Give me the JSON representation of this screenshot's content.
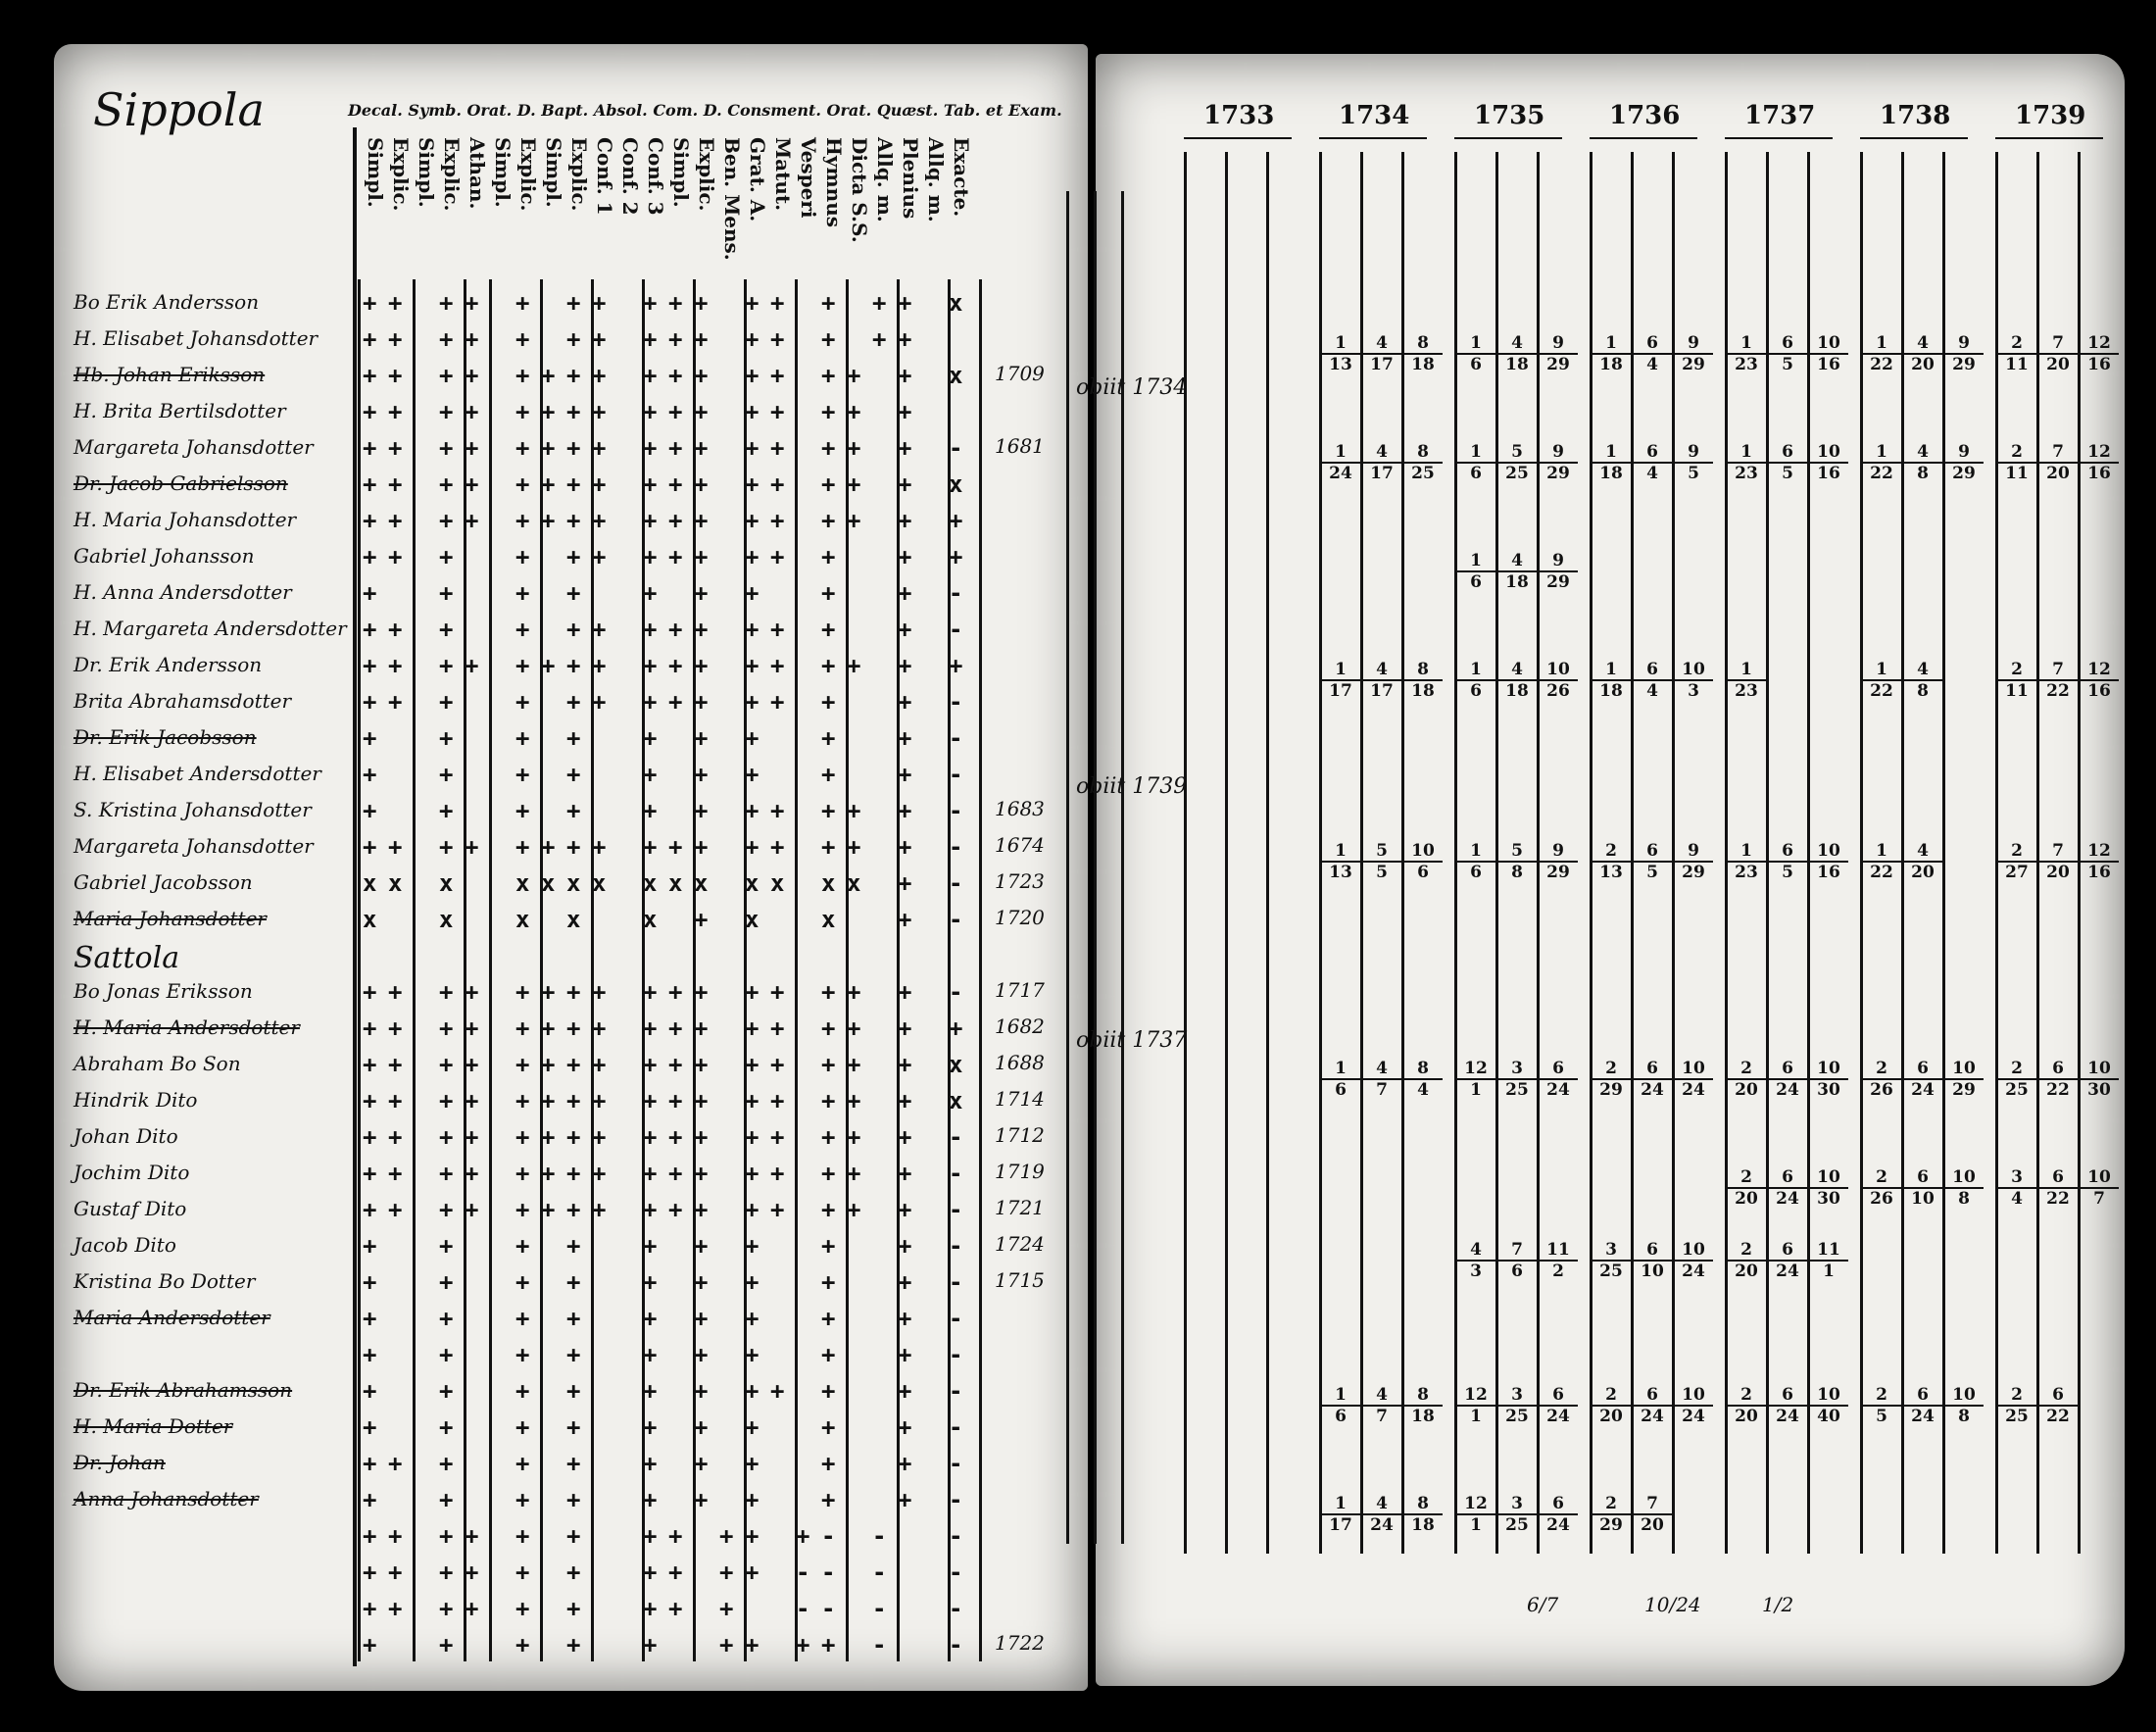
{
  "left_page": {
    "village_title": "Sippola",
    "header_line": "Decal. Symb. Orat. D. Bapt. Absol. Com. D. Consment. Orat. Quæst. Tab. et Exam.",
    "column_headers": [
      "Simpl.",
      "Explic.",
      "Simpl.",
      "Explic.",
      "Athan.",
      "Simpl.",
      "Explic.",
      "Simpl.",
      "Explic.",
      "Conf. 1",
      "Conf. 2",
      "Conf. 3",
      "Simpl.",
      "Explic.",
      "Ben. Mens.",
      "Grat. A.",
      "Matut.",
      "Vesperi",
      "Hymnus",
      "Dicta S.S.",
      "Allq. m.",
      "Plenius",
      "Allq. m.",
      "Exacte."
    ],
    "rows": [
      {
        "name": "Bo Erik Andersson",
        "marks": "++ ++ + ++ +++ ++ + ++ x",
        "year": "",
        "obit": ""
      },
      {
        "name": "H. Elisabet Johansdotter",
        "marks": "++ ++ + ++ +++ ++ + ++  ",
        "year": "",
        "obit": ""
      },
      {
        "name": "Hb. Johan Eriksson",
        "marks": "++ ++ ++++ +++ ++ ++ + x",
        "year": "1709",
        "obit": "obiit 1734",
        "struck": true
      },
      {
        "name": "H. Brita Bertilsdotter",
        "marks": "++ ++ ++++ +++ ++ ++ +  ",
        "year": "",
        "obit": ""
      },
      {
        "name": "Margareta Johansdotter",
        "marks": "++ ++ ++++ +++ ++ ++ + -",
        "year": "1681",
        "obit": ""
      },
      {
        "name": "Dr. Jacob Gabrielsson",
        "marks": "++ ++ ++++ +++ ++ ++ + x",
        "year": "",
        "obit": "",
        "struck": true
      },
      {
        "name": "H. Maria Johansdotter",
        "marks": "++ ++ ++++ +++ ++ ++ + +",
        "year": "",
        "obit": ""
      },
      {
        "name": "Gabriel Johansson",
        "marks": "++ +  + ++ +++ ++ +  + +",
        "year": "",
        "obit": ""
      },
      {
        "name": "H. Anna Andersdotter",
        "marks": "+  +  + +  + + +  +  + -",
        "year": "",
        "obit": ""
      },
      {
        "name": "H. Margareta Andersdotter",
        "marks": "++ +  + ++ +++ ++ +  + -",
        "year": "",
        "obit": ""
      },
      {
        "name": "Dr. Erik Andersson",
        "marks": "++ ++ ++++ +++ ++ ++ + +",
        "year": "",
        "obit": ""
      },
      {
        "name": "Brita Abrahamsdotter",
        "marks": "++ +  + ++ +++ ++ +  + -",
        "year": "",
        "obit": ""
      },
      {
        "name": "Dr. Erik Jacobsson",
        "marks": "+  +  + +  + + +  +  + -",
        "year": "",
        "obit": "",
        "struck": true
      },
      {
        "name": "H. Elisabet Andersdotter",
        "marks": "+  +  + +  + + +  +  + -",
        "year": "",
        "obit": "obiit 1739"
      },
      {
        "name": "S. Kristina Johansdotter",
        "marks": "+  +  + +  + + ++ ++ + -",
        "year": "1683",
        "obit": ""
      },
      {
        "name": "Margareta Johansdotter",
        "marks": "++ ++ ++++ +++ ++ ++ + -",
        "year": "1674",
        "obit": ""
      },
      {
        "name": "Gabriel Jacobsson",
        "marks": "xx x  xxxx xxx xx xx + -",
        "year": "1723",
        "obit": ""
      },
      {
        "name": "Maria Johansdotter",
        "marks": "x  x  x x  x + x  x  + -",
        "year": "1720",
        "obit": "",
        "struck": true
      },
      {
        "name": "Sattola",
        "marks": "",
        "year": "",
        "obit": "",
        "section": true
      },
      {
        "name": "Bo Jonas Eriksson",
        "marks": "++ ++ ++++ +++ ++ ++ + -",
        "year": "1717",
        "obit": ""
      },
      {
        "name": "H. Maria Andersdotter",
        "marks": "++ ++ ++++ +++ ++ ++ + +",
        "year": "1682",
        "obit": "obiit 1737",
        "struck": true
      },
      {
        "name": "Abraham Bo Son",
        "marks": "++ ++ ++++ +++ ++ ++ + x",
        "year": "1688",
        "obit": ""
      },
      {
        "name": "Hindrik Dito",
        "marks": "++ ++ ++++ +++ ++ ++ + x",
        "year": "1714",
        "obit": ""
      },
      {
        "name": "Johan Dito",
        "marks": "++ ++ ++++ +++ ++ ++ + -",
        "year": "1712",
        "obit": ""
      },
      {
        "name": "Jochim Dito",
        "marks": "++ ++ ++++ +++ ++ ++ + -",
        "year": "1719",
        "obit": ""
      },
      {
        "name": "Gustaf Dito",
        "marks": "++ ++ ++++ +++ ++ ++ + -",
        "year": "1721",
        "obit": ""
      },
      {
        "name": "Jacob Dito",
        "marks": "+  +  + +  + + +  +  + -",
        "year": "1724",
        "obit": ""
      },
      {
        "name": "Kristina Bo Dotter",
        "marks": "+  +  + +  + + +  +  + -",
        "year": "1715",
        "obit": ""
      },
      {
        "name": "Maria Andersdotter",
        "marks": "+  +  + +  + + +  +  + -",
        "year": "",
        "obit": "",
        "struck": true
      },
      {
        "name": "",
        "marks": "+  +  + +  + + +  +  + -",
        "year": "",
        "obit": ""
      },
      {
        "name": "Dr. Erik Abrahamsson",
        "marks": "+  +  + +  + + ++ +  + -",
        "year": "",
        "obit": "",
        "struck": true
      },
      {
        "name": "H. Maria Dotter",
        "marks": "+  +  + +  + + +  +  + -",
        "year": "",
        "obit": "",
        "struck": true
      },
      {
        "name": "Dr. Johan",
        "marks": "++ +  + +  + + +  +  + -",
        "year": "",
        "obit": "",
        "struck": true
      },
      {
        "name": "Anna Johansdotter",
        "marks": "+  +  + +  + + +  +  + -",
        "year": "",
        "obit": "",
        "struck": true
      },
      {
        "name": "",
        "marks": "++ ++ + +  ++ ++ +- -  -",
        "year": "",
        "obit": "",
        "struck": true
      },
      {
        "name": "",
        "marks": "++ ++ + +  ++ ++ -- -  -",
        "year": "",
        "obit": "",
        "struck": true
      },
      {
        "name": "",
        "marks": "++ ++ + +  ++ +  -- -  -",
        "year": "",
        "obit": "",
        "struck": true
      },
      {
        "name": "",
        "marks": "+  +  + +  +  ++ ++ -  -",
        "year": "1722",
        "obit": ""
      }
    ]
  },
  "right_page": {
    "years": [
      "1733",
      "1734",
      "1735",
      "1736",
      "1737",
      "1738",
      "1739"
    ],
    "entries": [
      {
        "row": 0,
        "year": 1,
        "vals": [
          [
            "1",
            "13"
          ],
          [
            "4",
            "17"
          ],
          [
            "8",
            "18"
          ]
        ]
      },
      {
        "row": 0,
        "year": 2,
        "vals": [
          [
            "1",
            "6"
          ],
          [
            "4",
            "18"
          ],
          [
            "9",
            "29"
          ]
        ]
      },
      {
        "row": 0,
        "year": 3,
        "vals": [
          [
            "1",
            "18"
          ],
          [
            "6",
            "4"
          ],
          [
            "9",
            "29"
          ]
        ]
      },
      {
        "row": 0,
        "year": 4,
        "vals": [
          [
            "1",
            "23"
          ],
          [
            "6",
            "5"
          ],
          [
            "10",
            "16"
          ]
        ]
      },
      {
        "row": 0,
        "year": 5,
        "vals": [
          [
            "1",
            "22"
          ],
          [
            "4",
            "20"
          ],
          [
            "9",
            "29"
          ]
        ]
      },
      {
        "row": 0,
        "year": 6,
        "vals": [
          [
            "2",
            "11"
          ],
          [
            "7",
            "20"
          ],
          [
            "12",
            "16"
          ]
        ]
      },
      {
        "row": 3,
        "year": 1,
        "vals": [
          [
            "1",
            "24"
          ],
          [
            "4",
            "17"
          ],
          [
            "8",
            "25"
          ]
        ]
      },
      {
        "row": 3,
        "year": 2,
        "vals": [
          [
            "1",
            "6"
          ],
          [
            "5",
            "25"
          ],
          [
            "9",
            "29"
          ]
        ]
      },
      {
        "row": 3,
        "year": 3,
        "vals": [
          [
            "1",
            "18"
          ],
          [
            "6",
            "4"
          ],
          [
            "9",
            "5"
          ]
        ]
      },
      {
        "row": 3,
        "year": 4,
        "vals": [
          [
            "1",
            "23"
          ],
          [
            "6",
            "5"
          ],
          [
            "10",
            "16"
          ]
        ]
      },
      {
        "row": 3,
        "year": 5,
        "vals": [
          [
            "1",
            "22"
          ],
          [
            "4",
            "8"
          ],
          [
            "9",
            "29"
          ]
        ]
      },
      {
        "row": 3,
        "year": 6,
        "vals": [
          [
            "2",
            "11"
          ],
          [
            "7",
            "20"
          ],
          [
            "12",
            "16"
          ]
        ]
      },
      {
        "row": 6,
        "year": 2,
        "vals": [
          [
            "1",
            "6"
          ],
          [
            "4",
            "18"
          ],
          [
            "9",
            "29"
          ]
        ]
      },
      {
        "row": 9,
        "year": 1,
        "vals": [
          [
            "1",
            "17"
          ],
          [
            "4",
            "17"
          ],
          [
            "8",
            "18"
          ]
        ]
      },
      {
        "row": 9,
        "year": 2,
        "vals": [
          [
            "1",
            "6"
          ],
          [
            "4",
            "18"
          ],
          [
            "10",
            "26"
          ]
        ]
      },
      {
        "row": 9,
        "year": 3,
        "vals": [
          [
            "1",
            "18"
          ],
          [
            "6",
            "4"
          ],
          [
            "10",
            "3"
          ]
        ]
      },
      {
        "row": 9,
        "year": 4,
        "vals": [
          [
            "1",
            "23"
          ],
          [
            "",
            ""
          ],
          [
            "",
            ""
          ]
        ]
      },
      {
        "row": 9,
        "year": 5,
        "vals": [
          [
            "1",
            "22"
          ],
          [
            "4",
            "8"
          ],
          [
            "",
            ""
          ]
        ]
      },
      {
        "row": 9,
        "year": 6,
        "vals": [
          [
            "2",
            "11"
          ],
          [
            "7",
            "22"
          ],
          [
            "12",
            "16"
          ]
        ]
      },
      {
        "row": 14,
        "year": 1,
        "vals": [
          [
            "1",
            "13"
          ],
          [
            "5",
            "5"
          ],
          [
            "10",
            "6"
          ]
        ]
      },
      {
        "row": 14,
        "year": 2,
        "vals": [
          [
            "1",
            "6"
          ],
          [
            "5",
            "8"
          ],
          [
            "9",
            "29"
          ]
        ]
      },
      {
        "row": 14,
        "year": 3,
        "vals": [
          [
            "2",
            "13"
          ],
          [
            "6",
            "5"
          ],
          [
            "9",
            "29"
          ]
        ]
      },
      {
        "row": 14,
        "year": 4,
        "vals": [
          [
            "1",
            "23"
          ],
          [
            "6",
            "5"
          ],
          [
            "10",
            "16"
          ]
        ]
      },
      {
        "row": 14,
        "year": 5,
        "vals": [
          [
            "1",
            "22"
          ],
          [
            "4",
            "20"
          ],
          [
            "",
            ""
          ]
        ]
      },
      {
        "row": 14,
        "year": 6,
        "vals": [
          [
            "2",
            "27"
          ],
          [
            "7",
            "20"
          ],
          [
            "12",
            "16"
          ]
        ]
      },
      {
        "row": 20,
        "year": 1,
        "vals": [
          [
            "1",
            "6"
          ],
          [
            "4",
            "7"
          ],
          [
            "8",
            "4"
          ]
        ]
      },
      {
        "row": 20,
        "year": 2,
        "vals": [
          [
            "12",
            "1"
          ],
          [
            "3",
            "25"
          ],
          [
            "6",
            "24"
          ]
        ]
      },
      {
        "row": 20,
        "year": 3,
        "vals": [
          [
            "2",
            "29"
          ],
          [
            "6",
            "24"
          ],
          [
            "10",
            "24"
          ]
        ]
      },
      {
        "row": 20,
        "year": 4,
        "vals": [
          [
            "2",
            "20"
          ],
          [
            "6",
            "24"
          ],
          [
            "10",
            "30"
          ]
        ]
      },
      {
        "row": 20,
        "year": 5,
        "vals": [
          [
            "2",
            "26"
          ],
          [
            "6",
            "24"
          ],
          [
            "10",
            "29"
          ]
        ]
      },
      {
        "row": 20,
        "year": 6,
        "vals": [
          [
            "2",
            "25"
          ],
          [
            "6",
            "22"
          ],
          [
            "10",
            "30"
          ]
        ]
      },
      {
        "row": 23,
        "year": 4,
        "vals": [
          [
            "2",
            "20"
          ],
          [
            "6",
            "24"
          ],
          [
            "10",
            "30"
          ]
        ]
      },
      {
        "row": 23,
        "year": 5,
        "vals": [
          [
            "2",
            "26"
          ],
          [
            "6",
            "10"
          ],
          [
            "10",
            "8"
          ]
        ]
      },
      {
        "row": 23,
        "year": 6,
        "vals": [
          [
            "3",
            "4"
          ],
          [
            "6",
            "22"
          ],
          [
            "10",
            "7"
          ]
        ]
      },
      {
        "row": 25,
        "year": 2,
        "vals": [
          [
            "4",
            "3"
          ],
          [
            "7",
            "6"
          ],
          [
            "11",
            "2"
          ]
        ]
      },
      {
        "row": 25,
        "year": 3,
        "vals": [
          [
            "3",
            "25"
          ],
          [
            "6",
            "10"
          ],
          [
            "10",
            "24"
          ]
        ]
      },
      {
        "row": 25,
        "year": 4,
        "vals": [
          [
            "2",
            "20"
          ],
          [
            "6",
            "24"
          ],
          [
            "11",
            "1"
          ]
        ]
      },
      {
        "row": 29,
        "year": 1,
        "vals": [
          [
            "1",
            "6"
          ],
          [
            "4",
            "7"
          ],
          [
            "8",
            "18"
          ]
        ]
      },
      {
        "row": 29,
        "year": 2,
        "vals": [
          [
            "12",
            "1"
          ],
          [
            "3",
            "25"
          ],
          [
            "6",
            "24"
          ]
        ]
      },
      {
        "row": 29,
        "year": 3,
        "vals": [
          [
            "2",
            "20"
          ],
          [
            "6",
            "24"
          ],
          [
            "10",
            "24"
          ]
        ]
      },
      {
        "row": 29,
        "year": 4,
        "vals": [
          [
            "2",
            "20"
          ],
          [
            "6",
            "24"
          ],
          [
            "10",
            "40"
          ]
        ]
      },
      {
        "row": 29,
        "year": 5,
        "vals": [
          [
            "2",
            "5"
          ],
          [
            "6",
            "24"
          ],
          [
            "10",
            "8"
          ]
        ]
      },
      {
        "row": 29,
        "year": 6,
        "vals": [
          [
            "2",
            "25"
          ],
          [
            "6",
            "22"
          ],
          [
            "",
            ""
          ]
        ]
      },
      {
        "row": 32,
        "year": 1,
        "vals": [
          [
            "1",
            "17"
          ],
          [
            "4",
            "24"
          ],
          [
            "8",
            "18"
          ]
        ]
      },
      {
        "row": 32,
        "year": 2,
        "vals": [
          [
            "12",
            "1"
          ],
          [
            "3",
            "25"
          ],
          [
            "6",
            "24"
          ]
        ]
      },
      {
        "row": 32,
        "year": 3,
        "vals": [
          [
            "2",
            "29"
          ],
          [
            "7",
            "20"
          ],
          [
            "",
            ""
          ]
        ]
      }
    ],
    "bottom_fractions": [
      "6/7",
      "10/24",
      "1/2"
    ]
  },
  "colors": {
    "paper": "#f1f0ec",
    "ink": "#111111",
    "background": "#000000"
  }
}
